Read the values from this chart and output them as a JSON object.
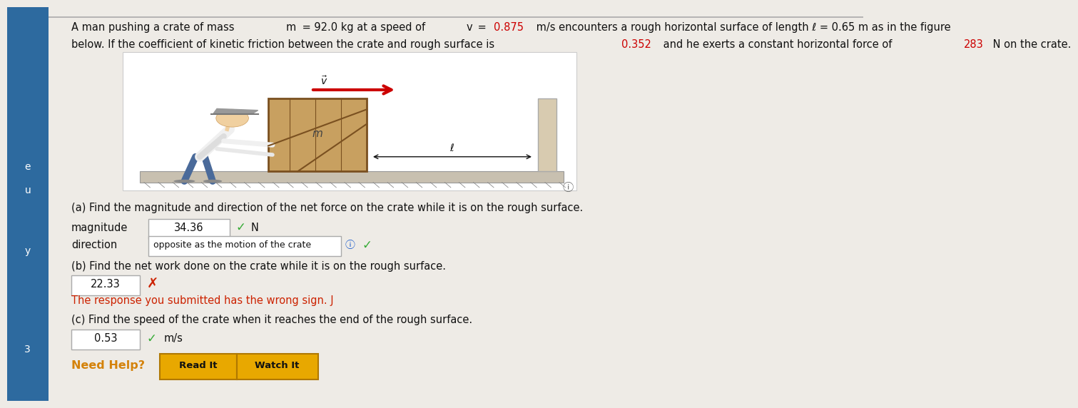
{
  "bg_color": "#eeebe6",
  "sidebar_color": "#2d6a9f",
  "border_top_color": "#aaaaaa",
  "text_color": "#111111",
  "highlight_color": "#cc0000",
  "check_color": "#33aa33",
  "wrong_color": "#cc2200",
  "need_help_color": "#d4820a",
  "button_face": "#e8a800",
  "button_edge": "#b07800",
  "input_face": "#ffffff",
  "input_edge": "#aaaaaa",
  "info_circle_color": "#1155cc",
  "line1": "A man pushing a crate of mass m = 92.0 kg at a speed of v = 0.875 m/s encounters a rough horizontal surface of length ℓ = 0.65 m as in the figure",
  "line2": "below. If the coefficient of kinetic friction between the crate and rough surface is 0.352 and he exerts a constant horizontal force of 283 N on the crate.",
  "part_a": "(a) Find the magnitude and direction of the net force on the crate while it is on the rough surface.",
  "magnitude_label": "magnitude",
  "magnitude_value": "34.36",
  "direction_label": "direction",
  "direction_value": "opposite as the motion of the crate",
  "part_b": "(b) Find the net work done on the crate while it is on the rough surface.",
  "work_value": "22.33",
  "wrong_sign": "The response you submitted has the wrong sign. J",
  "part_c": "(c) Find the speed of the crate when it reaches the end of the rough surface.",
  "speed_value": "0.53",
  "speed_unit": "m/s",
  "need_help": "Need Help?",
  "read_it": "Read It",
  "watch_it": "Watch It",
  "sidebar_letters": [
    [
      "e",
      0.595
    ],
    [
      "u",
      0.535
    ],
    [
      "y",
      0.38
    ],
    [
      "3",
      0.13
    ]
  ],
  "lm": 0.075,
  "fs": 10.5
}
